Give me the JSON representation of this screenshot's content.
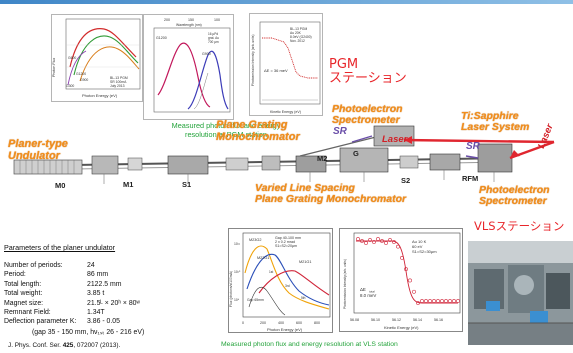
{
  "labels": {
    "planer_undulator": "Planer-type\nUndulator",
    "pgm_mono": "Plane Grating\nMonochromator",
    "pgm_station": "PGM\nステーション",
    "pes_pgm": "Photoelectron\nSpectrometer",
    "tisapphire": "Ti:Sapphire\nLaser System",
    "laser_top": "Laser",
    "laser_right": "Laser",
    "sr_left": "SR",
    "sr_right": "SR",
    "vls_mono": "Varied Line Spacing\nPlane Grating Monochromator",
    "pes_vls": "Photoelectron\nSpectrometer",
    "vls_station": "VLSステーション",
    "m0": "M0",
    "m1": "M1",
    "s1": "S1",
    "m2": "M2",
    "g": "G",
    "s2": "S2",
    "rfm": "RFM",
    "pgm_caption": "Measured photon flux and energy\nresolution at PGM station",
    "vls_caption": "Measured photon flux and energy resolution at VLS station"
  },
  "params": {
    "title": "Parameters of the planer undulator",
    "rows": [
      {
        "k": "Number of periods:",
        "v": "24"
      },
      {
        "k": "Period:",
        "v": "86 mm"
      },
      {
        "k": "Total length:",
        "v": "2122.5 mm"
      },
      {
        "k": "Total weight:",
        "v": "3.85 t"
      },
      {
        "k": "Magnet size:",
        "v": "21.5ᴸ × 20ʰ × 80ʷ"
      },
      {
        "k": "Remnant Field:",
        "v": "1.34T"
      },
      {
        "k": "Deflection parameter K:",
        "v": "3.86 - 0.05"
      }
    ],
    "tail": "(gap 35 - 150 mm, hν₁ₛₜ 26 - 216 eV)",
    "citation_prefix": "J. Phys. Conf. Ser. ",
    "citation_volume": "425",
    "citation_suffix": ", 072007 (2013)."
  },
  "insets": {
    "flux_pgm": {
      "legend": [
        "G1200",
        "G900",
        "G600",
        "G300"
      ],
      "note": "BL-13 PGM\nSR 100mA\nJuly 2013",
      "xlabel": "Photon Energy (eV)"
    },
    "spectrum_pgm": {
      "top_axis": [
        "200",
        "150",
        "100"
      ],
      "top_label": "Wavelength (nm)",
      "legend": [
        "G1200",
        "G900"
      ],
      "note": "16 µPd\ngrat. Au\n700 µm"
    },
    "resolution_pgm": {
      "note": "BL-13 PGM\nAu 20K\n8.0eV (G2400)\nNov. 2012",
      "delta": "ΔE = 36 meV",
      "xlabel": "Kinetic Energy (eV)"
    },
    "flux_vls": {
      "header": "Gap 40-100 mm\n2 x 0.2 mrad\nS1=S2=20µm",
      "series": [
        "M23G2",
        "M22G1",
        "M21G1"
      ],
      "gap": "Gap 65mm",
      "harmonics": [
        "1st",
        "3rd",
        "5th"
      ],
      "xlabel": "Photon Energy (eV)",
      "ylabel": "Flux (photons/s/100mA)",
      "xticks": [
        "0",
        "200",
        "400",
        "600",
        "800"
      ],
      "yticks": [
        "10¹¹",
        "10¹⁰",
        "10⁹"
      ]
    },
    "resolution_vls": {
      "note": "Au 10 K\n60 eV\nS1=S2=30µm",
      "delta_label": "ΔE",
      "delta_sub": "total",
      "delta_value": "8.0 meV",
      "xlabel": "Kinetic Energy (eV)",
      "ylabel": "Photoemission Intensity (arb. units)",
      "xticks": [
        "56.08",
        "56.10",
        "56.12",
        "56.14",
        "56.16"
      ]
    }
  },
  "colors": {
    "orange": "#f28e1c",
    "red": "#e8262b",
    "laser_beam": "#e0262f",
    "green": "#24a33b",
    "sr_purple": "#6a4ea8"
  },
  "icons": [
    "beamline-icon",
    "photo-icon"
  ]
}
